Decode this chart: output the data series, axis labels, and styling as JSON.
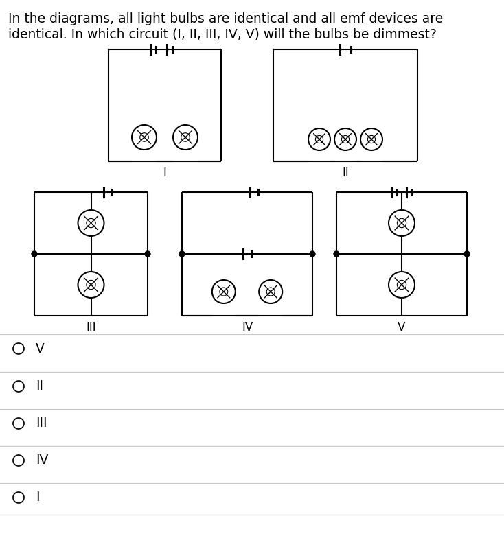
{
  "title_text_line1": "In the diagrams, all light bulbs are identical and all emf devices are",
  "title_text_line2": "identical. In which circuit (I, II, III, IV, V) will the bulbs be dimmest?",
  "bg_color": "#ffffff",
  "text_color": "#000000",
  "options": [
    "V",
    "II",
    "III",
    "IV",
    "I"
  ],
  "line_color": "#000000",
  "answer_line_color": "#c8c8c8",
  "title_fontsize": 13.5,
  "option_fontsize": 13.5
}
